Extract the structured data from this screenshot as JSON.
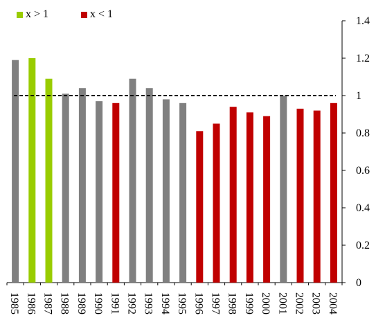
{
  "chart_data": {
    "type": "bar",
    "title": "",
    "xlabel": "",
    "ylabel": "",
    "categories": [
      "1985",
      "1986",
      "1987",
      "1988",
      "1989",
      "1990",
      "1991",
      "1992",
      "1993",
      "1994",
      "1995",
      "1996",
      "1997",
      "1998",
      "1999",
      "2000",
      "2001",
      "2002",
      "2003",
      "2004"
    ],
    "values": [
      1.19,
      1.2,
      1.09,
      1.01,
      1.04,
      0.97,
      0.96,
      1.09,
      1.04,
      0.98,
      0.96,
      0.81,
      0.85,
      0.94,
      0.91,
      0.89,
      1.0,
      0.93,
      0.92,
      0.96
    ],
    "highlight": [
      null,
      "x > 1",
      "x > 1",
      null,
      null,
      null,
      "x < 1",
      null,
      null,
      null,
      null,
      "x < 1",
      "x < 1",
      "x < 1",
      "x < 1",
      "x < 1",
      null,
      "x < 1",
      "x < 1",
      "x < 1"
    ],
    "reference_line": 1,
    "ylim": [
      0,
      1.4
    ],
    "yticks": [
      "0",
      "0.2",
      "0.4",
      "0.6",
      "0.8",
      "1",
      "1.2",
      "1.4"
    ],
    "y_axis_side": "right",
    "legend": [
      {
        "label": "x > 1",
        "color": "#99cc00"
      },
      {
        "label": "x < 1",
        "color": "#c00000"
      }
    ],
    "default_color": "#808080",
    "grid": false
  }
}
